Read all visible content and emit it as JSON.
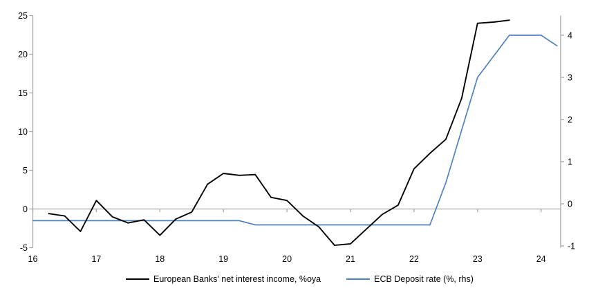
{
  "chart": {
    "title": "",
    "legend": [
      {
        "label": "European Banks' net interest income, %oya",
        "color": "#000000"
      },
      {
        "label": "ECB Deposit rate (%, rhs)",
        "color": "#4f81bd"
      }
    ],
    "colors": {
      "axis_gray": "#a6a6a6",
      "nii_line": "#000000",
      "deposit_line": "#4f81bd",
      "text": "#000000"
    }
  },
  "chart_data": {
    "type": "line",
    "title": "",
    "xlabel": "",
    "ylabel_left": "",
    "ylabel_right": "",
    "x_range": [
      16,
      24.35
    ],
    "x_tick_labels": [
      "16",
      "17",
      "18",
      "19",
      "20",
      "21",
      "22",
      "23",
      "24"
    ],
    "x_ticks": [
      16,
      17,
      18,
      19,
      20,
      21,
      22,
      23,
      24
    ],
    "left_axis": {
      "range": [
        -5,
        25
      ],
      "ticks": [
        25,
        20,
        15,
        10,
        5,
        0,
        -5
      ]
    },
    "right_axis": {
      "range": [
        -1,
        4
      ],
      "ticks": [
        4,
        3,
        2,
        1,
        0,
        -1
      ]
    },
    "grid": "horizontal zero line only, gray",
    "legend_position": "bottom-center",
    "series": [
      {
        "name": "European Banks' net interest income, %oya",
        "axis": "left",
        "color": "#000000",
        "width": 1.9,
        "x": [
          16.25,
          16.5,
          16.75,
          17.0,
          17.25,
          17.5,
          17.75,
          18.0,
          18.25,
          18.5,
          18.75,
          19.0,
          19.25,
          19.5,
          19.75,
          20.0,
          20.25,
          20.5,
          20.75,
          21.0,
          21.25,
          21.5,
          21.75,
          22.0,
          22.25,
          22.5,
          22.75,
          23.0,
          23.25,
          23.5
        ],
        "values": [
          -0.6,
          -0.9,
          -2.9,
          1.1,
          -1.0,
          -1.8,
          -1.4,
          -3.4,
          -1.3,
          -0.4,
          3.2,
          4.6,
          4.35,
          4.45,
          1.5,
          1.1,
          -0.9,
          -2.3,
          -4.7,
          -4.5,
          -2.6,
          -0.7,
          0.5,
          5.2,
          7.2,
          9.0,
          14.3,
          24.0,
          24.15,
          24.4
        ]
      },
      {
        "name": "ECB Deposit rate (%, rhs)",
        "axis": "right",
        "color": "#4f81bd",
        "width": 1.7,
        "x": [
          16.0,
          16.25,
          16.5,
          16.75,
          17.0,
          17.25,
          17.5,
          17.75,
          18.0,
          18.25,
          18.5,
          18.75,
          19.0,
          19.25,
          19.5,
          19.75,
          20.0,
          20.25,
          20.5,
          20.75,
          21.0,
          21.25,
          21.5,
          21.75,
          22.0,
          22.25,
          22.5,
          22.75,
          23.0,
          23.25,
          23.5,
          23.75,
          24.0,
          24.25
        ],
        "values": [
          -0.4,
          -0.4,
          -0.4,
          -0.4,
          -0.4,
          -0.4,
          -0.4,
          -0.4,
          -0.4,
          -0.4,
          -0.4,
          -0.4,
          -0.4,
          -0.4,
          -0.5,
          -0.5,
          -0.5,
          -0.5,
          -0.5,
          -0.5,
          -0.5,
          -0.5,
          -0.5,
          -0.5,
          -0.5,
          -0.5,
          0.5,
          1.75,
          3.0,
          3.5,
          4.0,
          4.0,
          4.0,
          3.75
        ]
      }
    ]
  }
}
